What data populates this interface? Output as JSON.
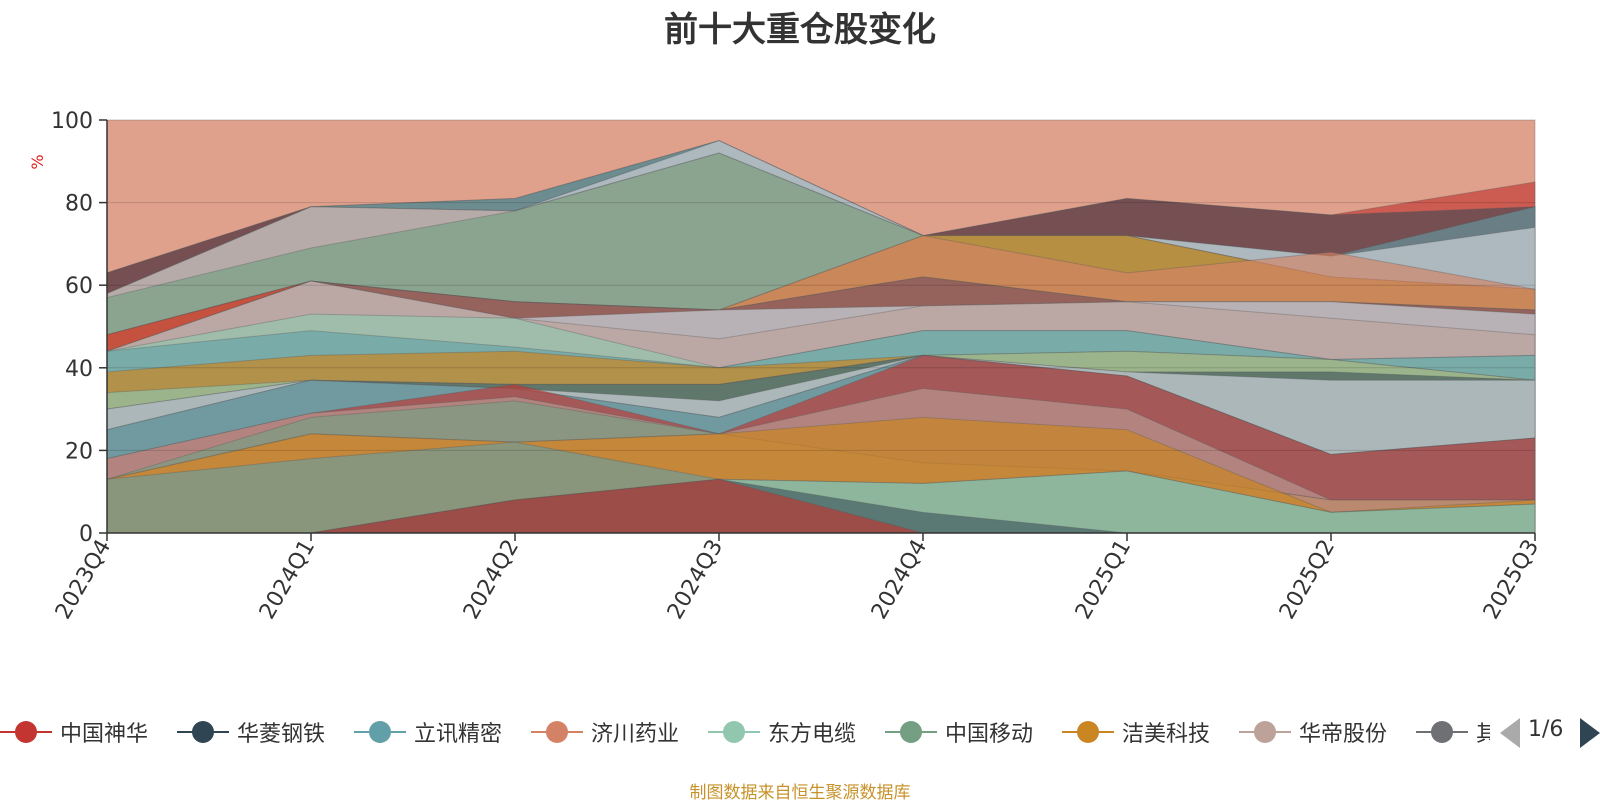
{
  "chart_data": {
    "type": "area",
    "title": "前十大重仓股变化",
    "ylabel": "%",
    "ylim": [
      0,
      100
    ],
    "y_ticks": [
      "0",
      "20",
      "40",
      "60",
      "80",
      "100"
    ],
    "categories": [
      "2023Q4",
      "2024Q1",
      "2024Q2",
      "2024Q3",
      "2024Q4",
      "2025Q1",
      "2025Q2",
      "2025Q3"
    ],
    "series": [
      {
        "name": "中国神华",
        "color": "#c23531",
        "values": [
          null,
          0,
          8,
          13,
          null,
          null,
          null,
          null
        ]
      },
      {
        "name": "华菱钢铁",
        "color": "#2f4554",
        "values": [
          null,
          null,
          null,
          13,
          5,
          0,
          null,
          null
        ]
      },
      {
        "name": "立讯精密",
        "color": "#61a0a8",
        "values": [
          13,
          18,
          22,
          null,
          null,
          null,
          null,
          null
        ]
      },
      {
        "name": "济川药业",
        "color": "#d48265",
        "values": [
          13,
          24,
          22,
          null,
          null,
          null,
          null,
          null
        ]
      },
      {
        "name": "东方电缆",
        "color": "#91c7ae",
        "values": [
          null,
          null,
          null,
          12,
          12,
          15,
          5,
          7
        ]
      },
      {
        "name": "中国移动",
        "color": "#749f83",
        "values": [
          13,
          28,
          32,
          24,
          17,
          null,
          null,
          null
        ]
      },
      {
        "name": "洁美科技",
        "color": "#ca8622",
        "values": [
          null,
          null,
          null,
          24,
          28,
          25,
          5,
          null
        ]
      },
      {
        "name": "华帝股份",
        "color": "#bda29a",
        "values": [
          null,
          null,
          null,
          24,
          35,
          30,
          8,
          8
        ]
      },
      {
        "name": "其他",
        "color": "#6e7074",
        "values": [
          null,
          null,
          null,
          28,
          43,
          38,
          19,
          23
        ]
      }
    ],
    "layers": [
      {
        "color": "#d48265",
        "opacity": 0.75,
        "values": [
          100,
          100,
          100,
          100,
          100,
          100,
          100,
          100
        ]
      },
      {
        "color": "#c23531",
        "opacity": 0.65,
        "values": [
          63,
          79,
          78,
          95,
          72,
          81,
          77,
          85
        ]
      },
      {
        "color": "#2f4554",
        "opacity": 0.55,
        "values": [
          63,
          79,
          81,
          95,
          72,
          81,
          77,
          79
        ]
      },
      {
        "color": "#61a0a8",
        "opacity": 0.6,
        "values": [
          58,
          79,
          81,
          95,
          72,
          72,
          67,
          79
        ]
      },
      {
        "color": "#c4ccd3",
        "opacity": 0.75,
        "values": [
          58,
          79,
          78,
          95,
          72,
          72,
          67,
          74
        ]
      },
      {
        "color": "#bda29a",
        "opacity": 0.6,
        "values": [
          58,
          79,
          78,
          92,
          72,
          72,
          62,
          59
        ]
      },
      {
        "color": "#749f83",
        "opacity": 0.65,
        "values": [
          57,
          69,
          78,
          92,
          72,
          72,
          62,
          59
        ]
      },
      {
        "color": "#ca8622",
        "opacity": 0.7,
        "values": [
          48,
          61,
          56,
          54,
          72,
          72,
          62,
          59
        ]
      },
      {
        "color": "#d48265",
        "opacity": 0.65,
        "values": [
          48,
          61,
          56,
          54,
          72,
          63,
          68,
          59
        ]
      },
      {
        "color": "#c23531",
        "opacity": 0.65,
        "values": [
          48,
          61,
          56,
          54,
          62,
          56,
          56,
          54
        ]
      },
      {
        "color": "#6e7074",
        "opacity": 0.55,
        "values": [
          44,
          61,
          56,
          54,
          62,
          56,
          56,
          54
        ]
      },
      {
        "color": "#c4ccd3",
        "opacity": 0.75,
        "values": [
          44,
          61,
          52,
          54,
          55,
          56,
          56,
          53
        ]
      },
      {
        "color": "#bda29a",
        "opacity": 0.6,
        "values": [
          44,
          61,
          52,
          47,
          55,
          56,
          52,
          48
        ]
      },
      {
        "color": "#91c7ae",
        "opacity": 0.65,
        "values": [
          44,
          53,
          52,
          40,
          49,
          49,
          42,
          43
        ]
      },
      {
        "color": "#61a0a8",
        "opacity": 0.6,
        "values": [
          44,
          49,
          45,
          40,
          49,
          49,
          42,
          43
        ]
      },
      {
        "color": "#ca8622",
        "opacity": 0.7,
        "values": [
          39,
          43,
          44,
          40,
          43,
          44,
          42,
          37
        ]
      },
      {
        "color": "#91c7ae",
        "opacity": 0.65,
        "values": [
          34,
          37,
          36,
          36,
          43,
          44,
          42,
          37
        ]
      },
      {
        "color": "#2f4554",
        "opacity": 0.55,
        "values": [
          30,
          37,
          36,
          36,
          43,
          39,
          39,
          37
        ]
      },
      {
        "color": "#c4ccd3",
        "opacity": 0.75,
        "values": [
          30,
          37,
          35,
          32,
          43,
          39,
          37,
          37
        ]
      },
      {
        "color": "#6e7074",
        "opacity": 0.55,
        "values": [
          25,
          37,
          35,
          28,
          43,
          38,
          19,
          23
        ]
      },
      {
        "color": "#61a0a8",
        "opacity": 0.6,
        "values": [
          25,
          37,
          35,
          28,
          43,
          38,
          19,
          23
        ]
      },
      {
        "color": "#c23531",
        "opacity": 0.65,
        "values": [
          18,
          29,
          36,
          24,
          43,
          38,
          19,
          23
        ]
      },
      {
        "color": "#bda29a",
        "opacity": 0.6,
        "values": [
          18,
          29,
          33,
          24,
          35,
          30,
          8,
          8
        ]
      },
      {
        "color": "#749f83",
        "opacity": 0.65,
        "values": [
          13,
          28,
          32,
          24,
          17,
          15,
          8,
          8
        ]
      },
      {
        "color": "#d48265",
        "opacity": 0.65,
        "values": [
          13,
          24,
          22,
          24,
          17,
          15,
          8,
          8
        ]
      },
      {
        "color": "#ca8622",
        "opacity": 0.7,
        "values": [
          13,
          24,
          22,
          24,
          28,
          25,
          5,
          8
        ]
      },
      {
        "color": "#61a0a8",
        "opacity": 0.6,
        "values": [
          13,
          18,
          22,
          13,
          12,
          15,
          5,
          7
        ]
      },
      {
        "color": "#91c7ae",
        "opacity": 0.65,
        "values": [
          0,
          0,
          8,
          13,
          12,
          15,
          5,
          7
        ]
      },
      {
        "color": "#2f4554",
        "opacity": 0.55,
        "values": [
          0,
          0,
          8,
          13,
          5,
          0,
          0,
          0
        ]
      },
      {
        "color": "#c23531",
        "opacity": 0.65,
        "values": [
          0,
          0,
          8,
          13,
          0,
          0,
          0,
          0
        ]
      }
    ],
    "legend_position": "bottom",
    "source_note": "制图数据来自恒生聚源数据库"
  },
  "legend": {
    "items": [
      {
        "name": "中国神华",
        "color": "#c23531"
      },
      {
        "name": "华菱钢铁",
        "color": "#2f4554"
      },
      {
        "name": "立讯精密",
        "color": "#61a0a8"
      },
      {
        "name": "济川药业",
        "color": "#d48265"
      },
      {
        "name": "东方电缆",
        "color": "#91c7ae"
      },
      {
        "name": "中国移动",
        "color": "#749f83"
      },
      {
        "name": "洁美科技",
        "color": "#ca8622"
      },
      {
        "name": "华帝股份",
        "color": "#bda29a"
      },
      {
        "name": "其他",
        "color": "#6e7074"
      }
    ],
    "page_text": "1/6"
  }
}
